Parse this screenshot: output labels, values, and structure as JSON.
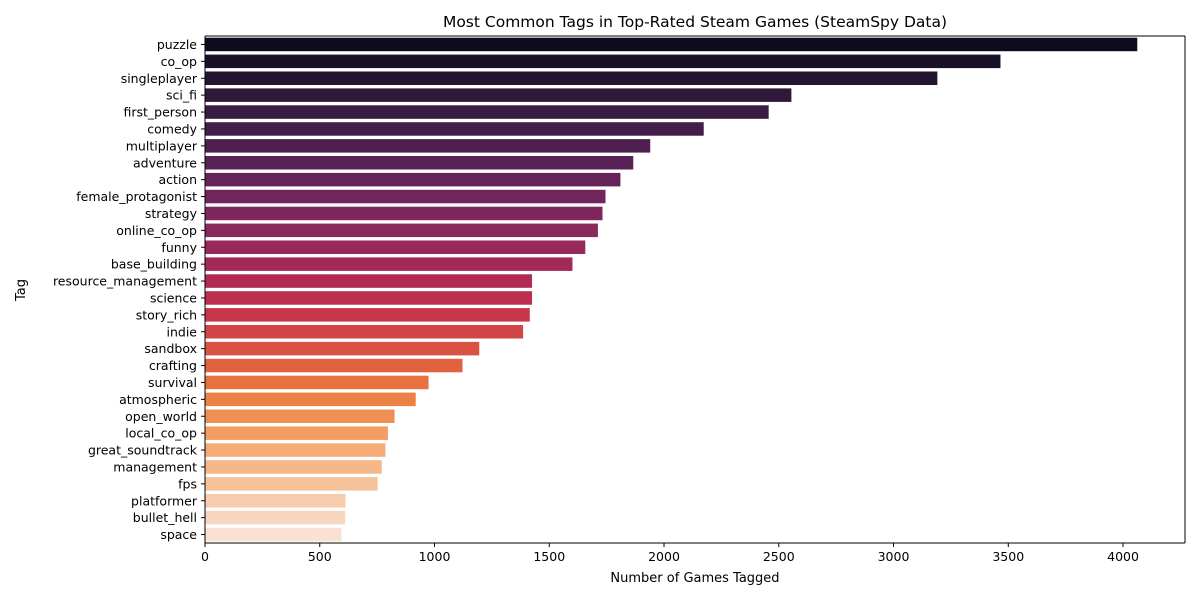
{
  "chart_data": {
    "type": "bar",
    "orientation": "horizontal",
    "title": "Most Common Tags in Top-Rated Steam Games (SteamSpy Data)",
    "xlabel": "Number of Games Tagged",
    "ylabel": "Tag",
    "xlim": [
      0,
      4270
    ],
    "xticks": [
      0,
      500,
      1000,
      1500,
      2000,
      2500,
      3000,
      3500,
      4000
    ],
    "grid": false,
    "legend": "none",
    "colormap": "rocket",
    "categories": [
      "puzzle",
      "co_op",
      "singleplayer",
      "sci_fi",
      "first_person",
      "comedy",
      "multiplayer",
      "adventure",
      "action",
      "female_protagonist",
      "strategy",
      "online_co_op",
      "funny",
      "base_building",
      "resource_management",
      "science",
      "story_rich",
      "indie",
      "sandbox",
      "crafting",
      "survival",
      "atmospheric",
      "open_world",
      "local_co_op",
      "great_soundtrack",
      "management",
      "fps",
      "platformer",
      "bullet_hell",
      "space"
    ],
    "values": [
      4062,
      3466,
      3191,
      2555,
      2456,
      2173,
      1940,
      1866,
      1810,
      1745,
      1732,
      1712,
      1657,
      1601,
      1425,
      1425,
      1415,
      1386,
      1195,
      1122,
      974,
      918,
      826,
      797,
      786,
      770,
      752,
      612,
      611,
      595
    ],
    "colors": [
      "#0f0b1e",
      "#1a1128",
      "#241531",
      "#2e1939",
      "#381c42",
      "#431e4a",
      "#4e2051",
      "#592256",
      "#652459",
      "#71265b",
      "#7d275c",
      "#8a295c",
      "#97295b",
      "#a32a58",
      "#b12b55",
      "#be2e50",
      "#c9364b",
      "#d24547",
      "#da5243",
      "#e26240",
      "#e7723f",
      "#ec8146",
      "#f08f53",
      "#f29e63",
      "#f4ab75",
      "#f5b787",
      "#f5c29a",
      "#f6ccad",
      "#f7d6c0",
      "#f9e2d4"
    ]
  }
}
